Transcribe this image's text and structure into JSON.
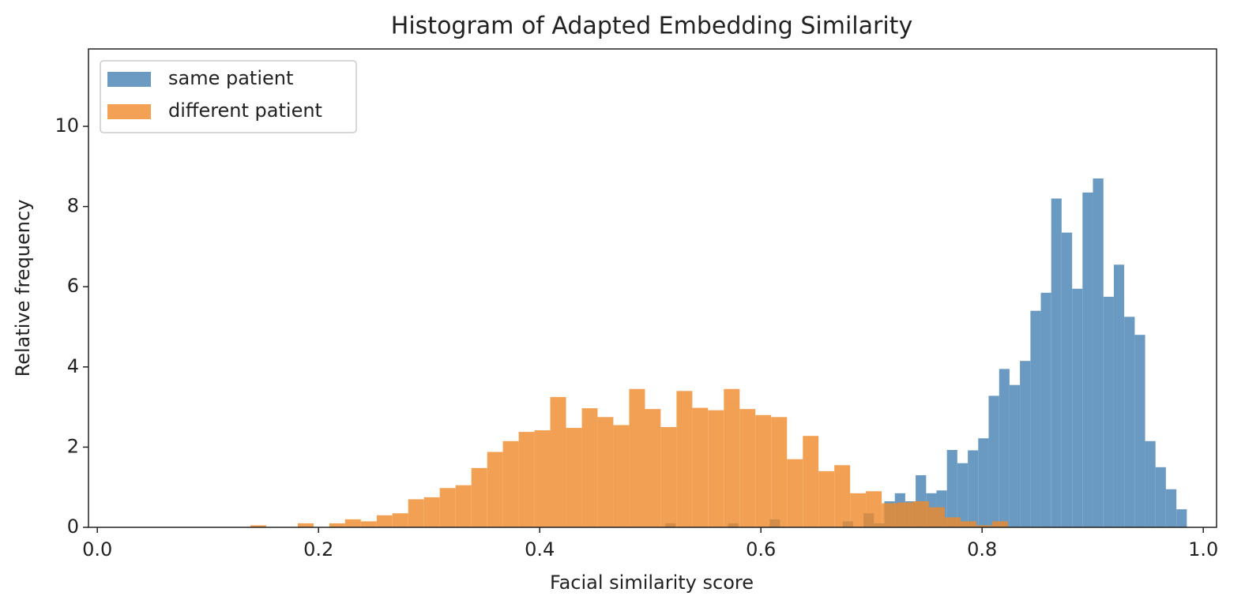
{
  "chart_data": {
    "type": "histogram",
    "title": "Histogram of Adapted Embedding Similarity",
    "x_label": "Facial similarity score",
    "y_label": "Relative frequency",
    "xlim": [
      -0.008,
      1.012
    ],
    "ylim": [
      0,
      11.93
    ],
    "xticks": [
      {
        "value": 0,
        "label": "0.0"
      },
      0.2,
      0.4,
      0.6,
      0.8,
      {
        "value": 1,
        "label": "1.0"
      }
    ],
    "yticks": [
      0,
      2,
      4,
      6,
      8,
      10
    ],
    "legend": "upper left",
    "opacity": 0.8,
    "series": [
      {
        "name": "same patient",
        "color": "#4682b4",
        "bins": [
          0.5136,
          0.523,
          0.5325,
          0.5419,
          0.5513,
          0.5608,
          0.5702,
          0.5796,
          0.589,
          0.5985,
          0.6079,
          0.6173,
          0.6268,
          0.6362,
          0.6456,
          0.6551,
          0.6645,
          0.6739,
          0.6833,
          0.6928,
          0.7022,
          0.7116,
          0.7211,
          0.7305,
          0.7399,
          0.7494,
          0.7588,
          0.7682,
          0.7776,
          0.7871,
          0.7965,
          0.8059,
          0.8154,
          0.8248,
          0.8342,
          0.8437,
          0.8531,
          0.8625,
          0.8719,
          0.8814,
          0.8908,
          0.9002,
          0.9097,
          0.9191,
          0.9285,
          0.938,
          0.9474,
          0.9568,
          0.9662,
          0.9757,
          0.9851
        ],
        "values": [
          0.1,
          0,
          0,
          0,
          0,
          0,
          0.1,
          0,
          0,
          0,
          0.2,
          0,
          0,
          0,
          0,
          0,
          0,
          0.15,
          0,
          0.35,
          0.1,
          0.65,
          0.85,
          0.65,
          1.3,
          0.85,
          0.92,
          1.93,
          1.6,
          1.92,
          2.22,
          3.28,
          3.95,
          3.55,
          4.15,
          5.4,
          5.85,
          8.2,
          7.35,
          5.95,
          8.35,
          8.7,
          5.75,
          6.55,
          5.25,
          4.8,
          2.15,
          1.5,
          0.95,
          0.45
        ]
      },
      {
        "name": "different patient",
        "color": "#ef8a2a",
        "bins": [
          0.1384,
          0.1527,
          0.1669,
          0.1812,
          0.1955,
          0.2098,
          0.224,
          0.2383,
          0.2526,
          0.2668,
          0.2811,
          0.2954,
          0.3096,
          0.3239,
          0.3382,
          0.3525,
          0.3667,
          0.381,
          0.3953,
          0.4095,
          0.4238,
          0.4381,
          0.4523,
          0.4666,
          0.4809,
          0.4952,
          0.5094,
          0.5237,
          0.538,
          0.5522,
          0.5665,
          0.5808,
          0.595,
          0.6093,
          0.6236,
          0.6379,
          0.6521,
          0.6664,
          0.6807,
          0.6949,
          0.7092,
          0.7235,
          0.7377,
          0.752,
          0.7663,
          0.7806,
          0.7948,
          0.8091,
          0.8234
        ],
        "values": [
          0.05,
          0,
          0,
          0.1,
          0,
          0.1,
          0.2,
          0.15,
          0.3,
          0.35,
          0.7,
          0.75,
          0.98,
          1.05,
          1.48,
          1.88,
          2.15,
          2.38,
          2.42,
          3.25,
          2.48,
          2.97,
          2.75,
          2.55,
          3.45,
          2.95,
          2.5,
          3.4,
          2.98,
          2.92,
          3.45,
          2.95,
          2.8,
          2.75,
          1.7,
          2.28,
          1.4,
          1.55,
          0.85,
          0.9,
          0.6,
          0.62,
          0.65,
          0.5,
          0.25,
          0.15,
          0.05,
          0.15
        ]
      }
    ]
  }
}
